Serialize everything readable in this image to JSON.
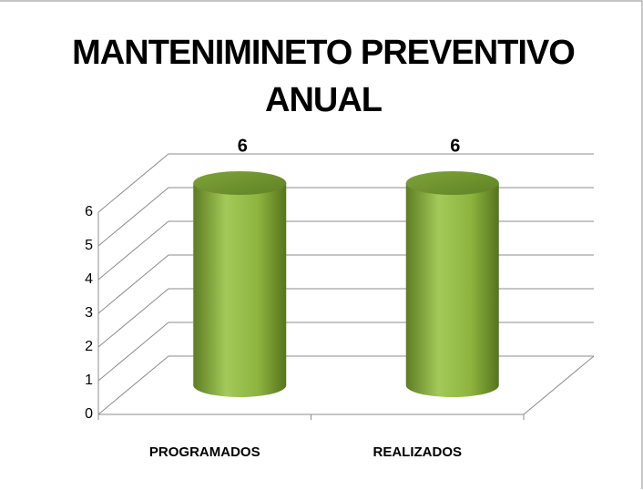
{
  "chart_data": {
    "type": "bar3d",
    "title": "MANTENIMINETO PREVENTIVO ANUAL",
    "categories": [
      "PROGRAMADOS",
      "REALIZADOS"
    ],
    "values": [
      6,
      6
    ],
    "color": "#8db43e",
    "ylim": [
      0,
      6
    ],
    "yticks": [
      0,
      1,
      2,
      3,
      4,
      5,
      6
    ],
    "grid": true
  }
}
